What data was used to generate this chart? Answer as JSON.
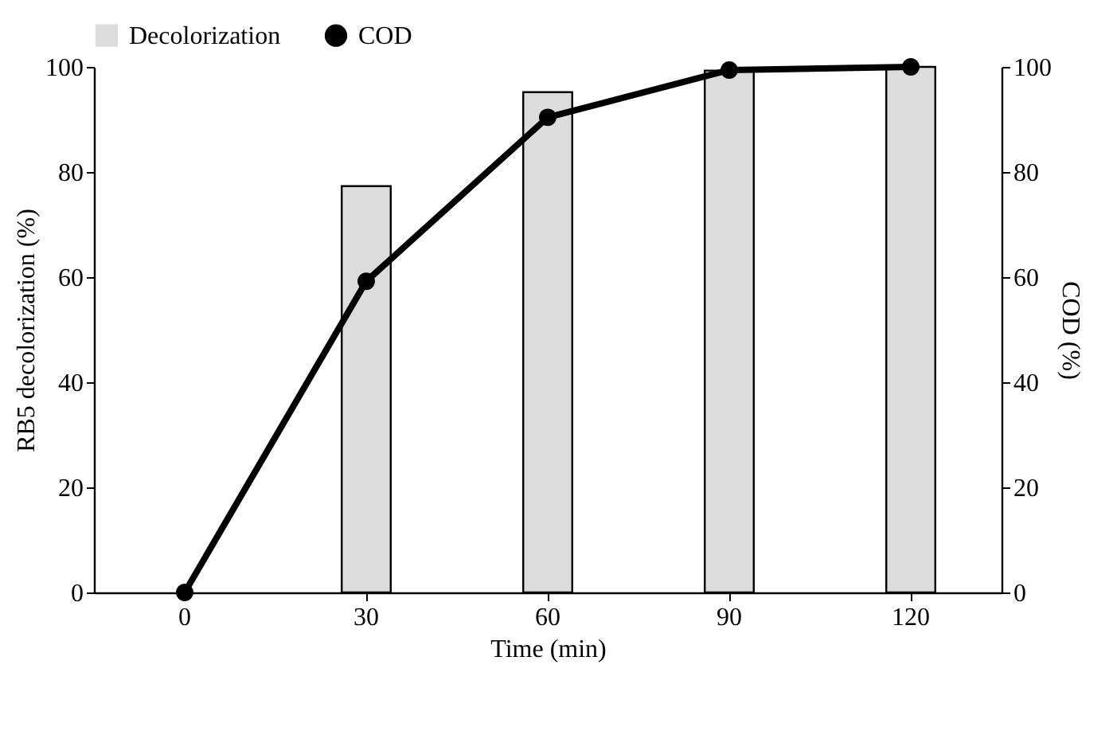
{
  "chart_data": {
    "type": "bar",
    "xlabel": "Time (min)",
    "ylabel": "RB5 decolorization (%)",
    "y2label": "COD (%)",
    "categories": [
      "0",
      "30",
      "60",
      "90",
      "120"
    ],
    "series": [
      {
        "name": "Decolorization",
        "color": "#dcdcdc",
        "values": [
          null,
          77.3,
          95.2,
          99.3,
          100
        ]
      },
      {
        "name": "COD",
        "type": "line",
        "axis": "y2",
        "color": "#000000",
        "values": [
          0,
          59.2,
          90.4,
          99.4,
          100
        ]
      }
    ],
    "ylim": [
      0,
      100
    ],
    "yticks": [
      0,
      20,
      40,
      60,
      80,
      100
    ],
    "y2lim": [
      0,
      100
    ],
    "y2ticks": [
      0,
      20,
      40,
      60,
      80,
      100
    ],
    "legend": "top left",
    "marker": "circle",
    "line_style": "solid",
    "grid": false
  }
}
